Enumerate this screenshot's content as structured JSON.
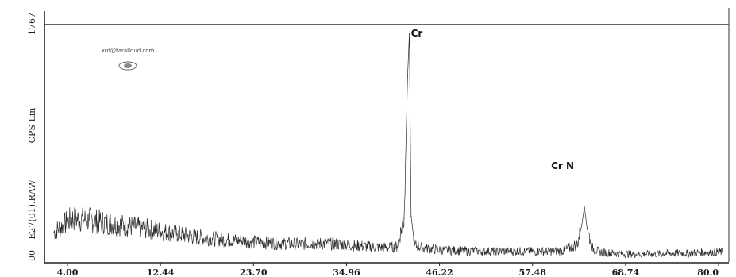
{
  "chart_data": {
    "type": "line",
    "title": "",
    "xlabel": "",
    "ylabel": "CPS Lin",
    "y_top_label": "1767",
    "y_bottom_label": "00",
    "file_label": "E27(01).RAW",
    "watermark": "xrd@taralloud.com",
    "x_ticks": [
      "4.00",
      "12.44",
      "23.70",
      "34.96",
      "46.22",
      "57.48",
      "68.74",
      "80.0"
    ],
    "xlim": [
      4.0,
      80.0
    ],
    "ylim": [
      0,
      1767
    ],
    "grid": false,
    "peak_labels": [
      {
        "text": "Cr",
        "x": 44.4
      },
      {
        "text": "Cr N",
        "x": 64.3
      }
    ],
    "series": [
      {
        "x": [
          4.0,
          6.0,
          8.0,
          10.0,
          12.0,
          14.0,
          16.0,
          18.0,
          20.0,
          22.0,
          24.0,
          26.0,
          28.0,
          30.0,
          32.0,
          34.0,
          36.0,
          38.0,
          40.0,
          42.0,
          43.0,
          43.8,
          44.2,
          44.4,
          44.6,
          45.0,
          46.0,
          48.0,
          50.0,
          52.0,
          54.0,
          56.0,
          58.0,
          60.0,
          62.0,
          63.5,
          64.0,
          64.3,
          64.6,
          65.2,
          66.0,
          68.0,
          70.0,
          72.0,
          74.0,
          76.0,
          78.0,
          80.0
        ],
        "values": [
          230,
          330,
          320,
          300,
          280,
          260,
          240,
          215,
          195,
          180,
          170,
          160,
          150,
          145,
          140,
          145,
          140,
          130,
          120,
          112,
          120,
          330,
          1400,
          1720,
          350,
          130,
          110,
          95,
          90,
          88,
          85,
          85,
          85,
          85,
          90,
          140,
          280,
          420,
          260,
          110,
          80,
          70,
          65,
          65,
          70,
          72,
          78,
          80
        ]
      }
    ]
  }
}
